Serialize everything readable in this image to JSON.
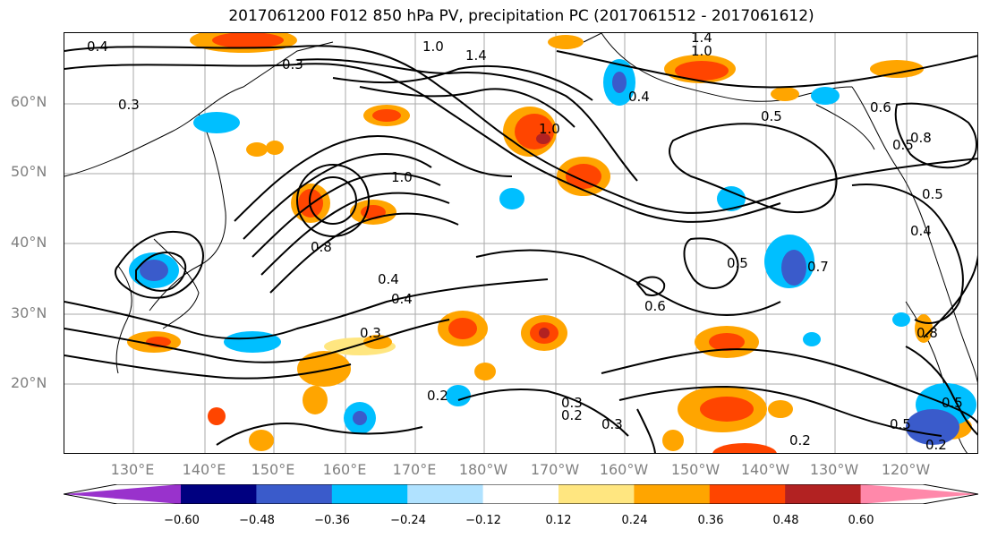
{
  "map": {
    "title": "2017061200 F012 850 hPa PV, precipitation PC (2017061512 - 2017061612)",
    "region": "North Pacific",
    "lat_ticks": [
      "60°N",
      "50°N",
      "40°N",
      "30°N",
      "20°N"
    ],
    "lon_ticks": [
      "130°E",
      "140°E",
      "150°E",
      "160°E",
      "170°E",
      "180°W",
      "170°W",
      "160°W",
      "150°W",
      "140°W",
      "130°W",
      "120°W"
    ],
    "contour_labels": [
      "0.4",
      "0.3",
      "0.3",
      "1.0",
      "1.4",
      "1.4",
      "1.0",
      "0.4",
      "0.5",
      "0.6",
      "0.5",
      "0.8",
      "0.5",
      "1.0",
      "1.0",
      "0.8",
      "0.4",
      "0.4",
      "0.5",
      "0.7",
      "0.6",
      "0.3",
      "0.2",
      "0.3",
      "0.2",
      "0.3",
      "0.2",
      "0.8",
      "0.5",
      "0.2",
      "0.4",
      "0.5"
    ],
    "colorbar": {
      "ticks": [
        "−0.60",
        "−0.48",
        "−0.36",
        "−0.24",
        "−0.12",
        "0.12",
        "0.24",
        "0.36",
        "0.48",
        "0.60"
      ],
      "colors": [
        "#9932CC",
        "#000080",
        "#3A5BCB",
        "#00BFFF",
        "#B0E2FF",
        "#FFFFFF",
        "#FFE680",
        "#FFA500",
        "#FF4500",
        "#B22222",
        "#FF88AA"
      ]
    }
  }
}
